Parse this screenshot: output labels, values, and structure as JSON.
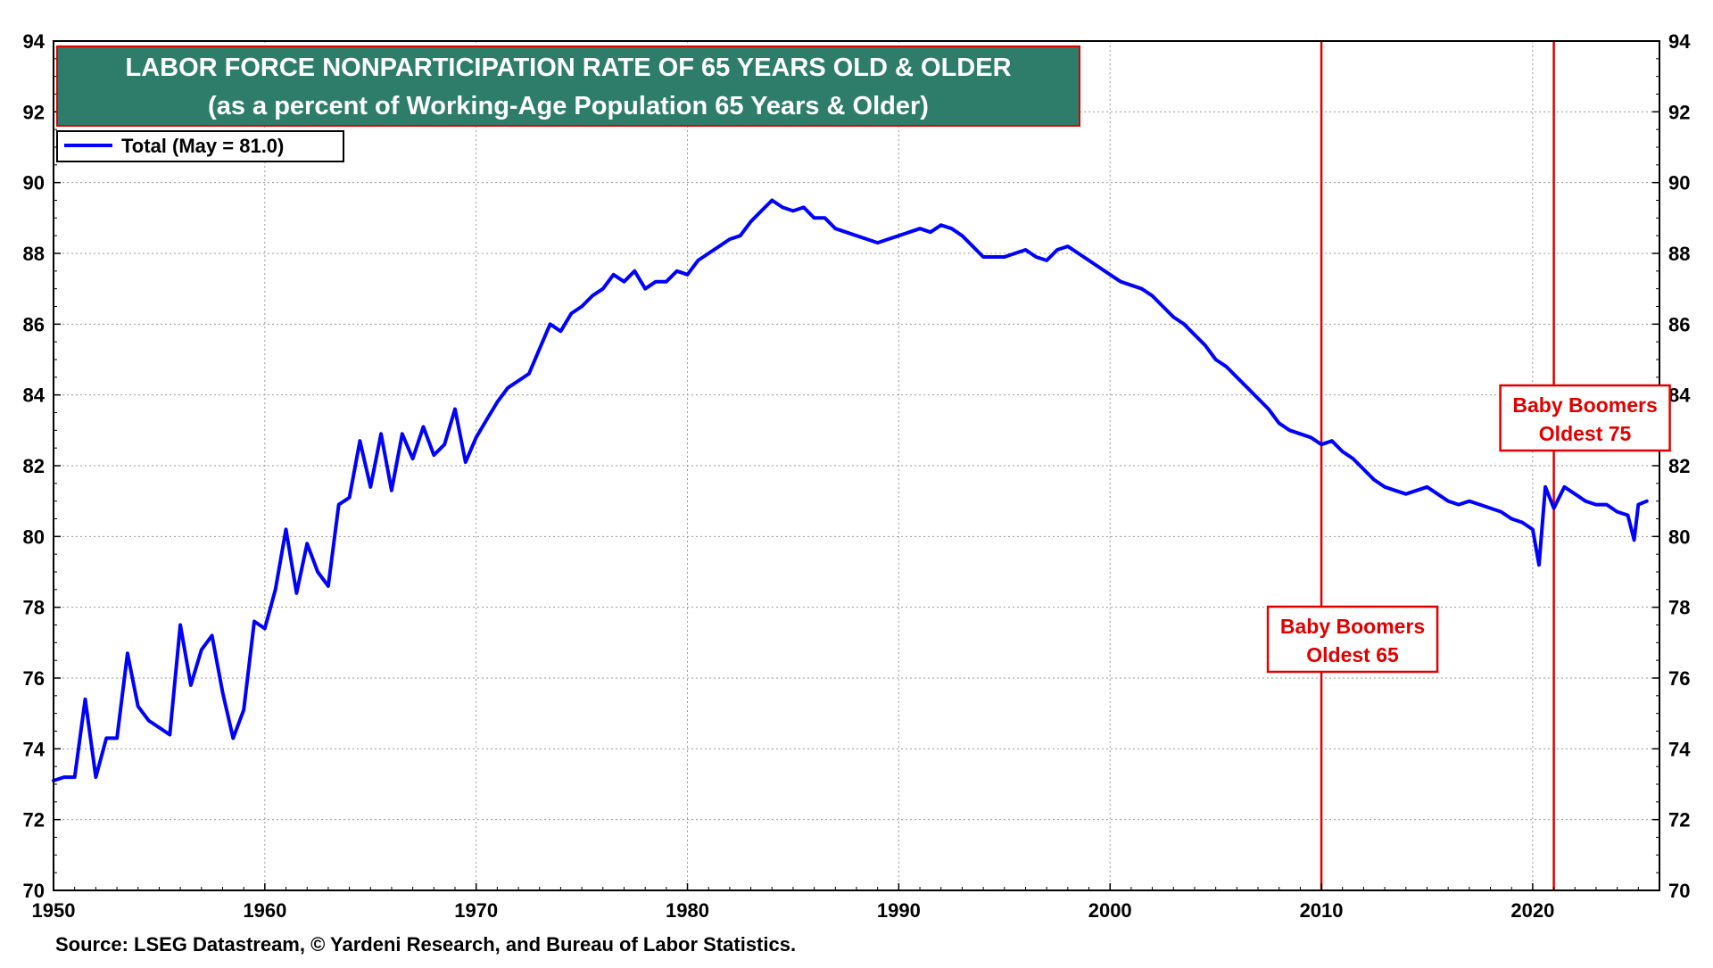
{
  "chart_data": {
    "type": "line",
    "title": "LABOR FORCE NONPARTICIPATION RATE OF 65 YEARS OLD & OLDER",
    "subtitle": "(as a percent of Working-Age Population 65 Years & Older)",
    "legend": {
      "label": "Total  (May = 81.0)",
      "placement": "top-left",
      "color": "#0000ff"
    },
    "source": "Source: LSEG Datastream, © Yardeni Research, and Bureau of Labor Statistics.",
    "xlim": [
      1950,
      2026
    ],
    "ylim": [
      70,
      94
    ],
    "x_ticks": [
      "1950",
      "1960",
      "1970",
      "1980",
      "1990",
      "2000",
      "2010",
      "2020"
    ],
    "y_ticks": [
      "70",
      "72",
      "74",
      "76",
      "78",
      "80",
      "82",
      "84",
      "86",
      "88",
      "90",
      "92",
      "94"
    ],
    "grid": true,
    "colors": {
      "line": "#0000ff",
      "title_bg": "#2e7d6b",
      "annotation": "#e00000"
    },
    "annotations": [
      {
        "year": 2010,
        "line1": "Baby Boomers",
        "line2": "Oldest 65"
      },
      {
        "year": 2021,
        "line1": "Baby Boomers",
        "line2": "Oldest 75"
      }
    ],
    "series": [
      {
        "name": "Total",
        "x": [
          1950.0,
          1950.5,
          1951.0,
          1951.5,
          1952.0,
          1952.5,
          1953.0,
          1953.5,
          1954.0,
          1954.5,
          1955.0,
          1955.5,
          1956.0,
          1956.5,
          1957.0,
          1957.5,
          1958.0,
          1958.5,
          1959.0,
          1959.5,
          1960.0,
          1960.5,
          1961.0,
          1961.5,
          1962.0,
          1962.5,
          1963.0,
          1963.5,
          1964.0,
          1964.5,
          1965.0,
          1965.5,
          1966.0,
          1966.5,
          1967.0,
          1967.5,
          1968.0,
          1968.5,
          1969.0,
          1969.5,
          1970.0,
          1970.5,
          1971.0,
          1971.5,
          1972.0,
          1972.5,
          1973.0,
          1973.5,
          1974.0,
          1974.5,
          1975.0,
          1975.5,
          1976.0,
          1976.5,
          1977.0,
          1977.5,
          1978.0,
          1978.5,
          1979.0,
          1979.5,
          1980.0,
          1980.5,
          1981.0,
          1981.5,
          1982.0,
          1982.5,
          1983.0,
          1983.5,
          1984.0,
          1984.5,
          1985.0,
          1985.5,
          1986.0,
          1986.5,
          1987.0,
          1987.5,
          1988.0,
          1988.5,
          1989.0,
          1989.5,
          1990.0,
          1990.5,
          1991.0,
          1991.5,
          1992.0,
          1992.5,
          1993.0,
          1993.5,
          1994.0,
          1994.5,
          1995.0,
          1995.5,
          1996.0,
          1996.5,
          1997.0,
          1997.5,
          1998.0,
          1998.5,
          1999.0,
          1999.5,
          2000.0,
          2000.5,
          2001.0,
          2001.5,
          2002.0,
          2002.5,
          2003.0,
          2003.5,
          2004.0,
          2004.5,
          2005.0,
          2005.5,
          2006.0,
          2006.5,
          2007.0,
          2007.5,
          2008.0,
          2008.5,
          2009.0,
          2009.5,
          2010.0,
          2010.5,
          2011.0,
          2011.5,
          2012.0,
          2012.5,
          2013.0,
          2013.5,
          2014.0,
          2014.5,
          2015.0,
          2015.5,
          2016.0,
          2016.5,
          2017.0,
          2017.5,
          2018.0,
          2018.5,
          2019.0,
          2019.5,
          2020.0,
          2020.3,
          2020.6,
          2021.0,
          2021.5,
          2022.0,
          2022.5,
          2023.0,
          2023.5,
          2024.0,
          2024.5,
          2024.8,
          2025.0,
          2025.4
        ],
        "values": [
          73.1,
          73.2,
          73.2,
          75.4,
          73.2,
          74.3,
          74.3,
          76.7,
          75.2,
          74.8,
          74.6,
          74.4,
          77.5,
          75.8,
          76.8,
          77.2,
          75.6,
          74.3,
          75.1,
          77.6,
          77.4,
          78.5,
          80.2,
          78.4,
          79.8,
          79.0,
          78.6,
          80.9,
          81.1,
          82.7,
          81.4,
          82.9,
          81.3,
          82.9,
          82.2,
          83.1,
          82.3,
          82.6,
          83.6,
          82.1,
          82.8,
          83.3,
          83.8,
          84.2,
          84.4,
          84.6,
          85.3,
          86.0,
          85.8,
          86.3,
          86.5,
          86.8,
          87.0,
          87.4,
          87.2,
          87.5,
          87.0,
          87.2,
          87.2,
          87.5,
          87.4,
          87.8,
          88.0,
          88.2,
          88.4,
          88.5,
          88.9,
          89.2,
          89.5,
          89.3,
          89.2,
          89.3,
          89.0,
          89.0,
          88.7,
          88.6,
          88.5,
          88.4,
          88.3,
          88.4,
          88.5,
          88.6,
          88.7,
          88.6,
          88.8,
          88.7,
          88.5,
          88.2,
          87.9,
          87.9,
          87.9,
          88.0,
          88.1,
          87.9,
          87.8,
          88.1,
          88.2,
          88.0,
          87.8,
          87.6,
          87.4,
          87.2,
          87.1,
          87.0,
          86.8,
          86.5,
          86.2,
          86.0,
          85.7,
          85.4,
          85.0,
          84.8,
          84.5,
          84.2,
          83.9,
          83.6,
          83.2,
          83.0,
          82.9,
          82.8,
          82.6,
          82.7,
          82.4,
          82.2,
          81.9,
          81.6,
          81.4,
          81.3,
          81.2,
          81.3,
          81.4,
          81.2,
          81.0,
          80.9,
          81.0,
          80.9,
          80.8,
          80.7,
          80.5,
          80.4,
          80.2,
          79.2,
          81.4,
          80.8,
          81.4,
          81.2,
          81.0,
          80.9,
          80.9,
          80.7,
          80.6,
          79.9,
          80.9,
          81.0
        ]
      }
    ]
  }
}
